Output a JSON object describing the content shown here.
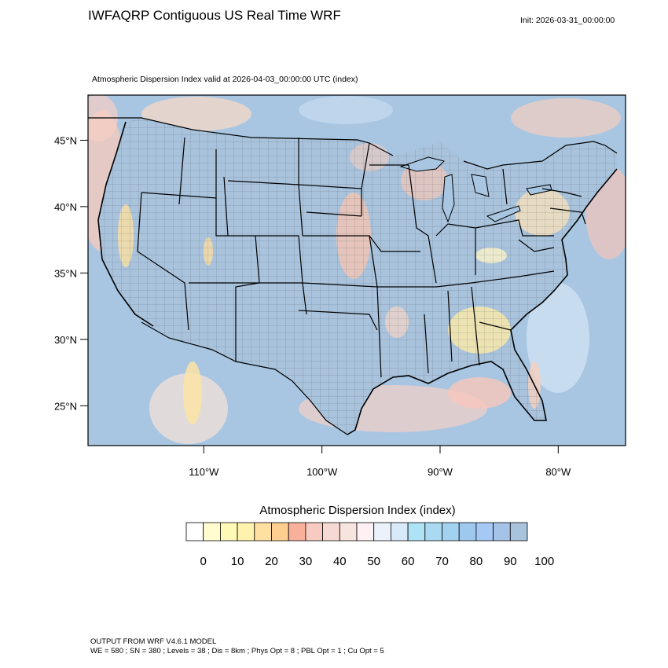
{
  "header": {
    "title": "IWFAQRP Contiguous US Real Time WRF",
    "init": "Init: 2026-03-31_00:00:00",
    "subtitle": "Atmospheric Dispersion Index valid at 2026-04-03_00:00:00 UTC   (index)"
  },
  "map": {
    "lon_range": [
      -119.8,
      -74.3
    ],
    "lat_range": [
      22.0,
      48.4
    ],
    "lat_ticks": [
      {
        "value": 45,
        "label": "45°N"
      },
      {
        "value": 40,
        "label": "40°N"
      },
      {
        "value": 35,
        "label": "35°N"
      },
      {
        "value": 30,
        "label": "30°N"
      },
      {
        "value": 25,
        "label": "25°N"
      }
    ],
    "lon_ticks": [
      {
        "value": -110,
        "label": "110°W"
      },
      {
        "value": -100,
        "label": "100°W"
      },
      {
        "value": -90,
        "label": "90°W"
      },
      {
        "value": -80,
        "label": "80°W"
      }
    ],
    "colors": {
      "dominant": "#a9c3dc",
      "ocean": "#a8c6e2",
      "boundary": "#000000"
    }
  },
  "colorbar": {
    "title": "Atmospheric Dispersion Index  (index)",
    "colors": [
      "#ffffff",
      "#fffdd0",
      "#fff9b8",
      "#fff2ac",
      "#ffe0a0",
      "#ffcf90",
      "#f8b09a",
      "#f7cbc2",
      "#f5d9d2",
      "#f8e4de",
      "#fff0f3",
      "#ecf2fc",
      "#d8eaf9",
      "#aee2f5",
      "#a9daf2",
      "#a3d2f0",
      "#9fc8ee",
      "#a6c8f4",
      "#a4c3e6",
      "#a9c3dc"
    ],
    "tick_labels": [
      "0",
      "10",
      "20",
      "30",
      "40",
      "50",
      "60",
      "70",
      "80",
      "90",
      "100"
    ]
  },
  "footer": {
    "line1": "OUTPUT FROM WRF V4.6.1 MODEL",
    "line2": "WE = 580 ; SN = 380 ; Levels = 38 ; Dis = 8km ; Phys Opt = 8 ; PBL Opt = 1 ; Cu Opt = 5"
  }
}
